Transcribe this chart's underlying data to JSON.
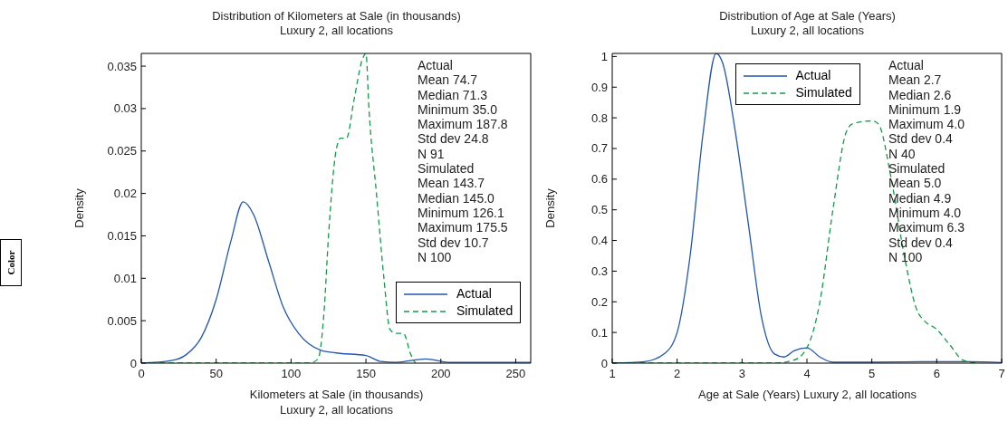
{
  "chart_data": [
    {
      "type": "line",
      "title": "Distribution of Kilometers at Sale (in thousands)",
      "subtitle": "Luxury 2, all locations",
      "xlabel": "Kilometers at Sale (in thousands)\nLuxury 2, all locations",
      "ylabel": "Density",
      "xlim": [
        0,
        260
      ],
      "xticks": [
        0,
        50,
        100,
        150,
        200,
        250
      ],
      "ylim": [
        0,
        0.0365
      ],
      "yticks": [
        0,
        0.005,
        0.01,
        0.015,
        0.02,
        0.025,
        0.03,
        0.035
      ],
      "legend": "bottom right",
      "grid": false,
      "marker": "none",
      "series": [
        {
          "name": "Actual",
          "color": "#2155b0",
          "line_style": "solid",
          "x": [
            0,
            20,
            30,
            40,
            50,
            60,
            68,
            75,
            85,
            95,
            105,
            120,
            130,
            150,
            160,
            170,
            190,
            205,
            260
          ],
          "values": [
            0,
            0.0003,
            0.001,
            0.003,
            0.0075,
            0.0145,
            0.019,
            0.0175,
            0.012,
            0.0065,
            0.0035,
            0.0015,
            0.0012,
            0.0009,
            0.0002,
            0.0001,
            0.0005,
            0.0001,
            0.0001
          ]
        },
        {
          "name": "Simulated",
          "color": "#139a49",
          "line_style": "dashed",
          "x": [
            0,
            112,
            118,
            122,
            125,
            130,
            133,
            137,
            142,
            148,
            150,
            152,
            157,
            162,
            166,
            170,
            175,
            180,
            183
          ],
          "values": [
            0,
            0,
            0.0005,
            0.006,
            0.015,
            0.025,
            0.0265,
            0.0265,
            0.031,
            0.036,
            0.0365,
            0.03,
            0.02,
            0.01,
            0.004,
            0.0035,
            0.0035,
            0.001,
            0
          ]
        }
      ],
      "annotations": [
        "Actual\nMean 74.7\nMedian 71.3\nMinimum 35.0\nMaximum 187.8\nStd dev 24.8\nN 91\nSimulated\nMean 143.7\nMedian 145.0\nMinimum 126.1\nMaximum 175.5\nStd dev 10.7\nN 100",
        "Color"
      ]
    },
    {
      "type": "line",
      "title": "Distribution of Age at Sale (Years)",
      "subtitle": "Luxury 2, all locations",
      "xlabel": "Age at Sale (Years) Luxury 2, all locations",
      "ylabel": "Density",
      "xlim": [
        1,
        7
      ],
      "xticks": [
        1,
        2,
        3,
        4,
        5,
        6,
        7
      ],
      "ylim": [
        0,
        1.01
      ],
      "yticks": [
        0,
        0.1,
        0.2,
        0.3,
        0.4,
        0.5,
        0.6,
        0.7,
        0.8,
        0.9,
        1
      ],
      "legend": "top",
      "grid": false,
      "marker": "none",
      "series": [
        {
          "name": "Actual",
          "color": "#2155b0",
          "line_style": "solid",
          "x": [
            1,
            1.5,
            1.8,
            2,
            2.2,
            2.4,
            2.6,
            2.7,
            2.9,
            3.1,
            3.3,
            3.5,
            3.65,
            3.8,
            4,
            4.2,
            4.4,
            5,
            6,
            6.5,
            7
          ],
          "values": [
            0,
            0.005,
            0.03,
            0.1,
            0.35,
            0.75,
            1.01,
            0.98,
            0.75,
            0.45,
            0.15,
            0.03,
            0.02,
            0.04,
            0.05,
            0.02,
            0.003,
            0.003,
            0.005,
            0.005,
            0.002
          ]
        },
        {
          "name": "Simulated",
          "color": "#139a49",
          "line_style": "dashed",
          "x": [
            1,
            3.5,
            3.8,
            4,
            4.2,
            4.4,
            4.6,
            4.7,
            5,
            5.1,
            5.3,
            5.5,
            5.7,
            5.8,
            6,
            6.2,
            6.4,
            6.6
          ],
          "values": [
            0,
            0,
            0.01,
            0.05,
            0.2,
            0.5,
            0.75,
            0.78,
            0.79,
            0.78,
            0.6,
            0.35,
            0.17,
            0.14,
            0.11,
            0.06,
            0.01,
            0
          ]
        }
      ],
      "annotations": [
        "Actual\nMean 2.7\nMedian 2.6\nMinimum 1.9\nMaximum 4.0\nStd dev 0.4\nN 40\nSimulated\nMean 5.0\nMedian 4.9\nMinimum 4.0\nMaximum 6.3\nStd dev 0.4\nN 100"
      ]
    }
  ]
}
